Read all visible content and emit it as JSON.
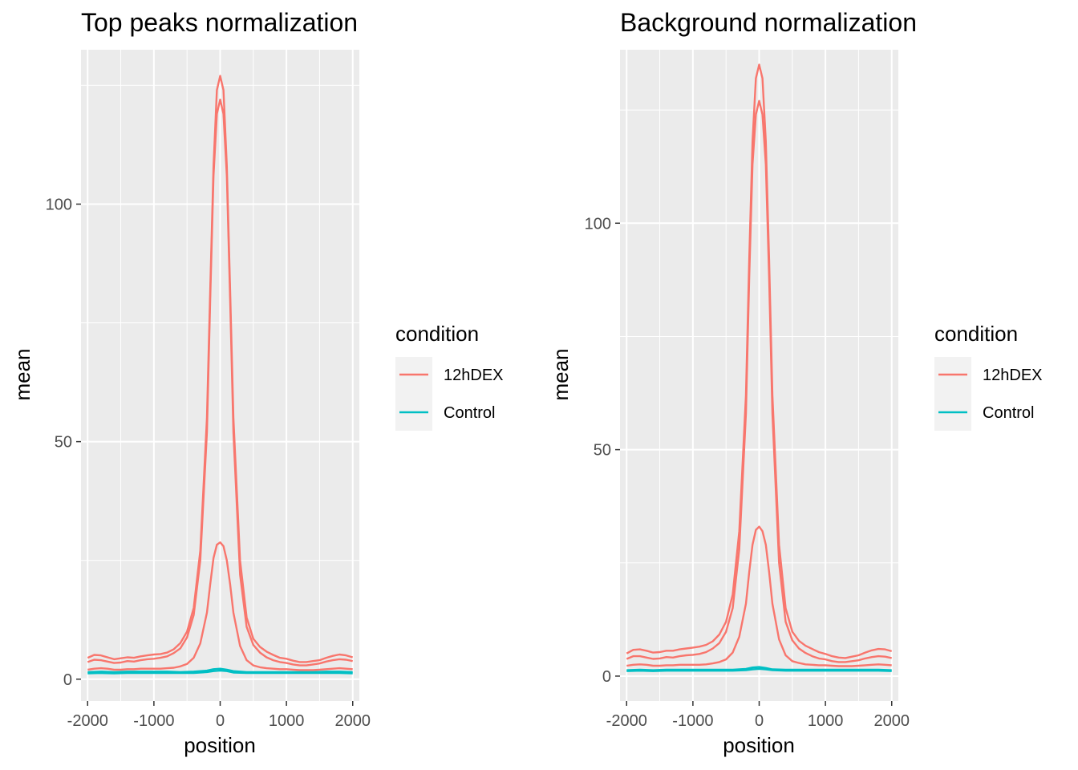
{
  "legend": {
    "title": "condition",
    "entries": [
      {
        "label": "12hDEX",
        "color": "#F8766D"
      },
      {
        "label": "Control",
        "color": "#00BFC4"
      }
    ]
  },
  "chart_data": [
    {
      "type": "line",
      "title": "Top peaks normalization",
      "xlabel": "position",
      "ylabel": "mean",
      "xlim": [
        -2100,
        2100
      ],
      "ylim": [
        -4.6,
        132.5
      ],
      "x_ticks": [
        -2000,
        -1000,
        0,
        1000,
        2000
      ],
      "x_tick_labels": [
        "-2000",
        "-1000",
        "0",
        "1000",
        "2000"
      ],
      "y_ticks": [
        0,
        50,
        100
      ],
      "y_tick_labels": [
        "0",
        "50",
        "100"
      ],
      "grid": true,
      "legend_position": "right",
      "series": [
        {
          "condition": "12hDEX",
          "color": "#F8766D",
          "x": [
            -2000,
            -1900,
            -1800,
            -1700,
            -1600,
            -1500,
            -1400,
            -1300,
            -1200,
            -1100,
            -1000,
            -900,
            -800,
            -700,
            -600,
            -500,
            -400,
            -300,
            -200,
            -150,
            -100,
            -50,
            0,
            50,
            100,
            150,
            200,
            300,
            400,
            500,
            600,
            700,
            800,
            900,
            1000,
            1100,
            1200,
            1300,
            1400,
            1500,
            1600,
            1700,
            1800,
            1900,
            2000
          ],
          "y": [
            4.5,
            5.1,
            5.0,
            4.6,
            4.2,
            4.4,
            4.6,
            4.5,
            4.8,
            5.0,
            5.2,
            5.3,
            5.6,
            6.3,
            7.6,
            10,
            15,
            27,
            55,
            82,
            108,
            124,
            127,
            124,
            108,
            82,
            55,
            25,
            13,
            8.5,
            6.8,
            5.8,
            5.1,
            4.5,
            4.3,
            3.9,
            3.6,
            3.6,
            3.8,
            4.0,
            4.5,
            4.9,
            5.2,
            5.0,
            4.6
          ]
        },
        {
          "condition": "12hDEX",
          "color": "#F8766D",
          "x": [
            -2000,
            -1900,
            -1800,
            -1700,
            -1600,
            -1500,
            -1400,
            -1300,
            -1200,
            -1100,
            -1000,
            -900,
            -800,
            -700,
            -600,
            -500,
            -400,
            -300,
            -200,
            -150,
            -100,
            -50,
            0,
            50,
            100,
            150,
            200,
            300,
            400,
            500,
            600,
            700,
            800,
            900,
            1000,
            1100,
            1200,
            1300,
            1400,
            1500,
            1600,
            1700,
            1800,
            1900,
            2000
          ],
          "y": [
            3.6,
            4.1,
            4.0,
            3.7,
            3.4,
            3.5,
            3.8,
            3.7,
            4.0,
            4.2,
            4.3,
            4.5,
            4.8,
            5.5,
            6.5,
            8.8,
            13.5,
            25,
            52,
            80,
            106,
            119,
            122,
            119,
            106,
            80,
            52,
            22,
            11,
            7.2,
            5.6,
            4.6,
            4.0,
            3.6,
            3.4,
            3.1,
            2.9,
            2.9,
            3.1,
            3.3,
            3.7,
            4.0,
            4.2,
            4.1,
            3.8
          ]
        },
        {
          "condition": "12hDEX",
          "color": "#F8766D",
          "x": [
            -2000,
            -1900,
            -1800,
            -1700,
            -1600,
            -1500,
            -1400,
            -1300,
            -1200,
            -1100,
            -1000,
            -900,
            -800,
            -700,
            -600,
            -500,
            -400,
            -300,
            -200,
            -150,
            -100,
            -50,
            0,
            50,
            100,
            150,
            200,
            300,
            400,
            500,
            600,
            700,
            800,
            900,
            1000,
            1100,
            1200,
            1300,
            1400,
            1500,
            1600,
            1700,
            1800,
            1900,
            2000
          ],
          "y": [
            2.0,
            2.2,
            2.3,
            2.2,
            2.0,
            2.0,
            2.1,
            2.1,
            2.2,
            2.2,
            2.2,
            2.2,
            2.3,
            2.4,
            2.7,
            3.2,
            4.5,
            7.5,
            14,
            20,
            25.5,
            28.3,
            28.8,
            28,
            25,
            20,
            14,
            7,
            4.0,
            2.9,
            2.5,
            2.3,
            2.2,
            2.1,
            2.1,
            2.0,
            1.9,
            1.9,
            1.9,
            2.0,
            2.1,
            2.2,
            2.3,
            2.2,
            2.1
          ]
        },
        {
          "condition": "Control",
          "color": "#00BFC4",
          "x": [
            -2000,
            -1800,
            -1600,
            -1400,
            -1200,
            -1000,
            -800,
            -600,
            -400,
            -200,
            -100,
            0,
            100,
            200,
            400,
            600,
            800,
            1000,
            1200,
            1400,
            1600,
            1800,
            2000
          ],
          "y": [
            1.5,
            1.6,
            1.5,
            1.6,
            1.6,
            1.6,
            1.6,
            1.5,
            1.6,
            1.8,
            2.1,
            2.2,
            2.0,
            1.7,
            1.5,
            1.5,
            1.5,
            1.5,
            1.5,
            1.5,
            1.6,
            1.6,
            1.5
          ]
        },
        {
          "condition": "Control",
          "color": "#00BFC4",
          "x": [
            -2000,
            -1800,
            -1600,
            -1400,
            -1200,
            -1000,
            -800,
            -600,
            -400,
            -200,
            -100,
            0,
            100,
            200,
            400,
            600,
            800,
            1000,
            1200,
            1400,
            1600,
            1800,
            2000
          ],
          "y": [
            1.2,
            1.3,
            1.2,
            1.3,
            1.3,
            1.3,
            1.3,
            1.3,
            1.3,
            1.5,
            1.7,
            1.8,
            1.7,
            1.4,
            1.3,
            1.3,
            1.3,
            1.3,
            1.3,
            1.3,
            1.3,
            1.3,
            1.2
          ]
        }
      ]
    },
    {
      "type": "line",
      "title": "Background normalization",
      "xlabel": "position",
      "ylabel": "mean",
      "xlim": [
        -2100,
        2100
      ],
      "ylim": [
        -5.5,
        138.3
      ],
      "x_ticks": [
        -2000,
        -1000,
        0,
        1000,
        2000
      ],
      "x_tick_labels": [
        "-2000",
        "-1000",
        "0",
        "1000",
        "2000"
      ],
      "y_ticks": [
        0,
        50,
        100
      ],
      "y_tick_labels": [
        "0",
        "50",
        "100"
      ],
      "grid": true,
      "legend_position": "right",
      "series": [
        {
          "condition": "12hDEX",
          "color": "#F8766D",
          "x": [
            -2000,
            -1900,
            -1800,
            -1700,
            -1600,
            -1500,
            -1400,
            -1300,
            -1200,
            -1100,
            -1000,
            -900,
            -800,
            -700,
            -600,
            -500,
            -400,
            -300,
            -200,
            -150,
            -100,
            -50,
            0,
            50,
            100,
            150,
            200,
            300,
            400,
            500,
            600,
            700,
            800,
            900,
            1000,
            1100,
            1200,
            1300,
            1400,
            1500,
            1600,
            1700,
            1800,
            1900,
            2000
          ],
          "y": [
            5.0,
            5.8,
            5.9,
            5.6,
            5.2,
            5.3,
            5.6,
            5.6,
            5.9,
            6.1,
            6.3,
            6.5,
            6.9,
            7.7,
            9.2,
            12,
            18,
            32,
            62,
            92,
            118,
            132,
            135,
            132,
            118,
            92,
            62,
            29,
            15,
            9.8,
            7.8,
            6.7,
            6.0,
            5.3,
            4.9,
            4.4,
            4.1,
            4.0,
            4.3,
            4.6,
            5.2,
            5.7,
            6.0,
            5.9,
            5.5
          ]
        },
        {
          "condition": "12hDEX",
          "color": "#F8766D",
          "x": [
            -2000,
            -1900,
            -1800,
            -1700,
            -1600,
            -1500,
            -1400,
            -1300,
            -1200,
            -1100,
            -1000,
            -900,
            -800,
            -700,
            -600,
            -500,
            -400,
            -300,
            -200,
            -150,
            -100,
            -50,
            0,
            50,
            100,
            150,
            200,
            300,
            400,
            500,
            600,
            700,
            800,
            900,
            1000,
            1100,
            1200,
            1300,
            1400,
            1500,
            1600,
            1700,
            1800,
            1900,
            2000
          ],
          "y": [
            3.8,
            4.4,
            4.4,
            4.1,
            3.8,
            3.9,
            4.2,
            4.1,
            4.4,
            4.6,
            4.7,
            4.9,
            5.3,
            6.1,
            7.3,
            9.8,
            15,
            28,
            58,
            88,
            113,
            124,
            127,
            124,
            113,
            88,
            58,
            25,
            12,
            7.9,
            6.1,
            5.1,
            4.4,
            3.9,
            3.7,
            3.3,
            3.1,
            3.1,
            3.3,
            3.5,
            3.9,
            4.2,
            4.4,
            4.3,
            4.0
          ]
        },
        {
          "condition": "12hDEX",
          "color": "#F8766D",
          "x": [
            -2000,
            -1900,
            -1800,
            -1700,
            -1600,
            -1500,
            -1400,
            -1300,
            -1200,
            -1100,
            -1000,
            -900,
            -800,
            -700,
            -600,
            -500,
            -400,
            -300,
            -200,
            -150,
            -100,
            -50,
            0,
            50,
            100,
            150,
            200,
            300,
            400,
            500,
            600,
            700,
            800,
            900,
            1000,
            1100,
            1200,
            1300,
            1400,
            1500,
            1600,
            1700,
            1800,
            1900,
            2000
          ],
          "y": [
            2.3,
            2.5,
            2.6,
            2.5,
            2.3,
            2.3,
            2.4,
            2.4,
            2.5,
            2.5,
            2.5,
            2.5,
            2.6,
            2.8,
            3.1,
            3.7,
            5.2,
            8.7,
            16,
            23,
            29,
            32.3,
            33,
            32,
            29,
            23,
            16,
            8.1,
            4.6,
            3.3,
            2.9,
            2.6,
            2.5,
            2.4,
            2.4,
            2.3,
            2.2,
            2.2,
            2.2,
            2.3,
            2.4,
            2.5,
            2.6,
            2.5,
            2.4
          ]
        },
        {
          "condition": "Control",
          "color": "#00BFC4",
          "x": [
            -2000,
            -1800,
            -1600,
            -1400,
            -1200,
            -1000,
            -800,
            -600,
            -400,
            -200,
            -100,
            0,
            100,
            200,
            400,
            600,
            800,
            1000,
            1200,
            1400,
            1600,
            1800,
            2000
          ],
          "y": [
            1.3,
            1.4,
            1.3,
            1.4,
            1.4,
            1.4,
            1.4,
            1.4,
            1.4,
            1.6,
            1.9,
            2.0,
            1.8,
            1.5,
            1.4,
            1.4,
            1.4,
            1.4,
            1.4,
            1.4,
            1.4,
            1.4,
            1.3
          ]
        },
        {
          "condition": "Control",
          "color": "#00BFC4",
          "x": [
            -2000,
            -1800,
            -1600,
            -1400,
            -1200,
            -1000,
            -800,
            -600,
            -400,
            -200,
            -100,
            0,
            100,
            200,
            400,
            600,
            800,
            1000,
            1200,
            1400,
            1600,
            1800,
            2000
          ],
          "y": [
            1.1,
            1.2,
            1.1,
            1.2,
            1.2,
            1.2,
            1.2,
            1.2,
            1.2,
            1.3,
            1.5,
            1.6,
            1.5,
            1.3,
            1.2,
            1.2,
            1.2,
            1.2,
            1.2,
            1.2,
            1.2,
            1.2,
            1.1
          ]
        }
      ]
    }
  ]
}
